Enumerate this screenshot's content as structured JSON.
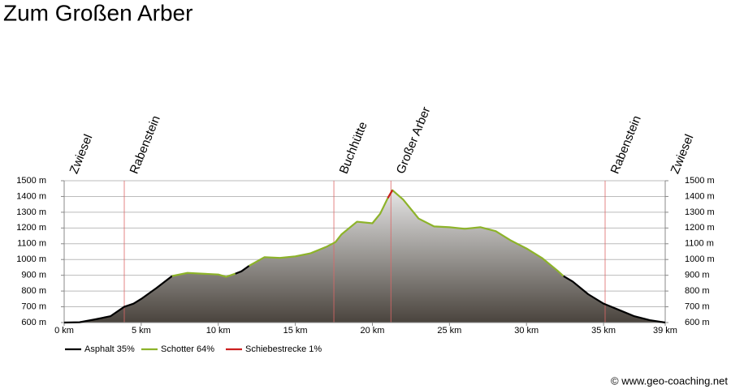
{
  "chart_data": {
    "type": "elevation-profile",
    "title": "Zum Großen Arber",
    "credit": "© www.geo-coaching.net",
    "x": [
      0,
      1,
      2,
      3,
      3.9,
      4.5,
      5,
      6,
      7,
      8,
      9,
      10,
      10.5,
      11.1,
      11.5,
      12,
      13,
      14,
      15,
      16,
      17,
      17.6,
      18,
      19,
      20,
      20.5,
      21,
      21.3,
      22,
      23,
      24,
      25,
      26,
      27,
      28,
      29,
      30,
      31,
      32,
      32.4,
      33,
      34,
      35,
      36,
      37,
      38,
      39
    ],
    "series": [
      {
        "name": "Asphalt 35%",
        "color": "#000000",
        "values": [
          600,
          602,
          620,
          640,
          700,
          720,
          750,
          820,
          895,
          null,
          null,
          null,
          null,
          910,
          925,
          960,
          null,
          null,
          null,
          null,
          null,
          null,
          null,
          null,
          null,
          null,
          null,
          null,
          null,
          null,
          null,
          null,
          null,
          null,
          null,
          null,
          null,
          null,
          null,
          895,
          860,
          780,
          720,
          680,
          640,
          615,
          600
        ]
      },
      {
        "name": "Schotter 64%",
        "color": "#8db32a",
        "values": [
          null,
          null,
          null,
          null,
          null,
          null,
          null,
          null,
          895,
          915,
          910,
          905,
          890,
          910,
          null,
          960,
          1015,
          1010,
          1020,
          1040,
          1080,
          1110,
          1160,
          1240,
          1230,
          1290,
          1390,
          1440,
          1380,
          1260,
          1210,
          1205,
          1195,
          1205,
          1180,
          1120,
          1070,
          1010,
          930,
          895,
          null,
          null,
          null,
          null,
          null,
          null,
          null
        ]
      },
      {
        "name": "Schiebestrecke 1%",
        "color": "#cc1f1f",
        "values": [
          null,
          null,
          null,
          null,
          null,
          null,
          null,
          null,
          null,
          null,
          null,
          null,
          null,
          null,
          null,
          null,
          null,
          null,
          null,
          null,
          null,
          null,
          null,
          null,
          null,
          null,
          1390,
          1440,
          null,
          null,
          null,
          null,
          null,
          null,
          null,
          null,
          null,
          null,
          null,
          null,
          null,
          null,
          null,
          null,
          null,
          null,
          null
        ]
      }
    ],
    "waypoints": [
      {
        "label": "Zwiesel",
        "x": 0
      },
      {
        "label": "Rabenstein",
        "x": 3.9
      },
      {
        "label": "Buchhütte",
        "x": 17.5
      },
      {
        "label": "Großer Arber",
        "x": 21.2
      },
      {
        "label": "Rabenstein",
        "x": 35.1
      },
      {
        "label": "Zwiesel",
        "x": 39
      }
    ],
    "xlim": [
      0,
      39
    ],
    "xticks": [
      {
        "value": 0,
        "label": "0 km"
      },
      {
        "value": 5,
        "label": "5 km"
      },
      {
        "value": 10,
        "label": "10 km"
      },
      {
        "value": 15,
        "label": "15 km"
      },
      {
        "value": 20,
        "label": "20 km"
      },
      {
        "value": 25,
        "label": "25 km"
      },
      {
        "value": 30,
        "label": "30 km"
      },
      {
        "value": 35,
        "label": "35 km"
      },
      {
        "value": 39,
        "label": "39 km"
      }
    ],
    "ylim": [
      600,
      1500
    ],
    "yticks": [
      {
        "value": 600,
        "label": "600 m"
      },
      {
        "value": 700,
        "label": "700 m"
      },
      {
        "value": 800,
        "label": "800 m"
      },
      {
        "value": 900,
        "label": "900 m"
      },
      {
        "value": 1000,
        "label": "1000 m"
      },
      {
        "value": 1100,
        "label": "1100 m"
      },
      {
        "value": 1200,
        "label": "1200 m"
      },
      {
        "value": 1300,
        "label": "1300 m"
      },
      {
        "value": 1400,
        "label": "1400 m"
      },
      {
        "value": 1500,
        "label": "1500 m"
      }
    ],
    "grid": true
  }
}
